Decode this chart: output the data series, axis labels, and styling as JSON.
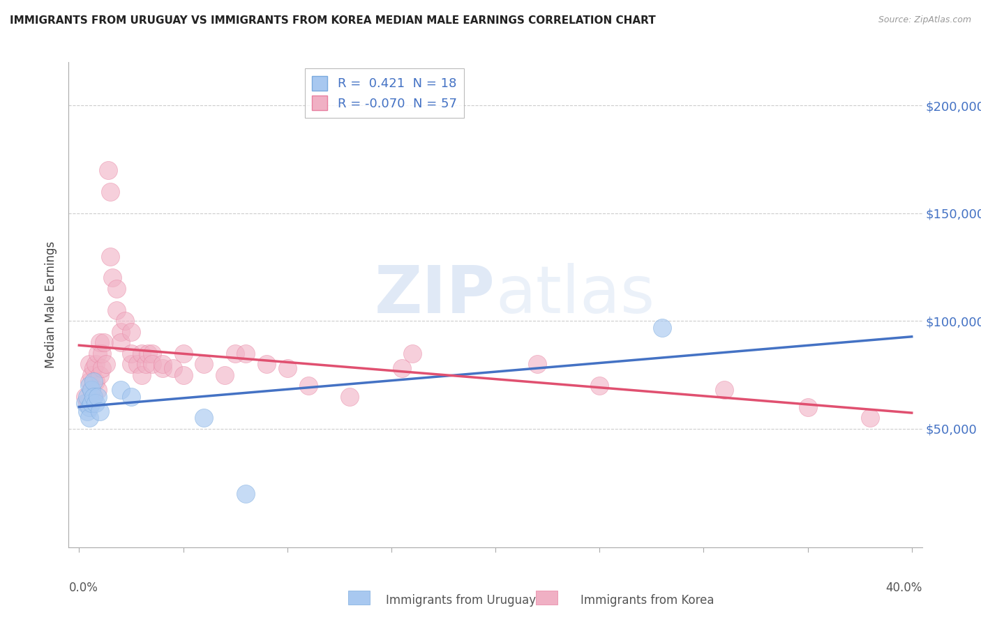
{
  "title": "IMMIGRANTS FROM URUGUAY VS IMMIGRANTS FROM KOREA MEDIAN MALE EARNINGS CORRELATION CHART",
  "source": "Source: ZipAtlas.com",
  "ylabel": "Median Male Earnings",
  "legend_entries": [
    {
      "label": "R =  0.421  N = 18",
      "color": "#a8c4e8"
    },
    {
      "label": "R = -0.070  N = 57",
      "color": "#f0a8bc"
    }
  ],
  "legend_bottom": [
    {
      "label": "Immigrants from Uruguay",
      "color": "#a8c4e8"
    },
    {
      "label": "Immigrants from Korea",
      "color": "#f0a8bc"
    }
  ],
  "xlim": [
    -0.005,
    0.405
  ],
  "ylim": [
    -5000,
    220000
  ],
  "yticks": [
    50000,
    100000,
    150000,
    200000
  ],
  "ytick_labels": [
    "$50,000",
    "$100,000",
    "$150,000",
    "$200,000"
  ],
  "background_color": "#ffffff",
  "watermark_text": "ZIPatlas",
  "uruguay_scatter": [
    [
      0.003,
      62000
    ],
    [
      0.004,
      58000
    ],
    [
      0.004,
      65000
    ],
    [
      0.005,
      60000
    ],
    [
      0.005,
      70000
    ],
    [
      0.005,
      55000
    ],
    [
      0.006,
      68000
    ],
    [
      0.006,
      62000
    ],
    [
      0.007,
      72000
    ],
    [
      0.007,
      65000
    ],
    [
      0.008,
      62000
    ],
    [
      0.009,
      65000
    ],
    [
      0.01,
      58000
    ],
    [
      0.02,
      68000
    ],
    [
      0.025,
      65000
    ],
    [
      0.28,
      97000
    ],
    [
      0.06,
      55000
    ],
    [
      0.08,
      20000
    ]
  ],
  "korea_scatter": [
    [
      0.003,
      65000
    ],
    [
      0.004,
      62000
    ],
    [
      0.005,
      72000
    ],
    [
      0.005,
      80000
    ],
    [
      0.006,
      68000
    ],
    [
      0.006,
      75000
    ],
    [
      0.007,
      78000
    ],
    [
      0.007,
      65000
    ],
    [
      0.008,
      80000
    ],
    [
      0.008,
      72000
    ],
    [
      0.009,
      68000
    ],
    [
      0.009,
      85000
    ],
    [
      0.01,
      90000
    ],
    [
      0.01,
      75000
    ],
    [
      0.011,
      78000
    ],
    [
      0.011,
      85000
    ],
    [
      0.012,
      90000
    ],
    [
      0.013,
      80000
    ],
    [
      0.014,
      170000
    ],
    [
      0.015,
      160000
    ],
    [
      0.015,
      130000
    ],
    [
      0.016,
      120000
    ],
    [
      0.018,
      115000
    ],
    [
      0.018,
      105000
    ],
    [
      0.02,
      95000
    ],
    [
      0.02,
      90000
    ],
    [
      0.022,
      100000
    ],
    [
      0.025,
      95000
    ],
    [
      0.025,
      80000
    ],
    [
      0.025,
      85000
    ],
    [
      0.028,
      80000
    ],
    [
      0.03,
      85000
    ],
    [
      0.03,
      75000
    ],
    [
      0.032,
      80000
    ],
    [
      0.033,
      85000
    ],
    [
      0.035,
      85000
    ],
    [
      0.035,
      80000
    ],
    [
      0.04,
      78000
    ],
    [
      0.04,
      80000
    ],
    [
      0.045,
      78000
    ],
    [
      0.05,
      85000
    ],
    [
      0.05,
      75000
    ],
    [
      0.06,
      80000
    ],
    [
      0.07,
      75000
    ],
    [
      0.075,
      85000
    ],
    [
      0.08,
      85000
    ],
    [
      0.09,
      80000
    ],
    [
      0.1,
      78000
    ],
    [
      0.11,
      70000
    ],
    [
      0.13,
      65000
    ],
    [
      0.155,
      78000
    ],
    [
      0.16,
      85000
    ],
    [
      0.22,
      80000
    ],
    [
      0.25,
      70000
    ],
    [
      0.31,
      68000
    ],
    [
      0.35,
      60000
    ],
    [
      0.38,
      55000
    ]
  ]
}
